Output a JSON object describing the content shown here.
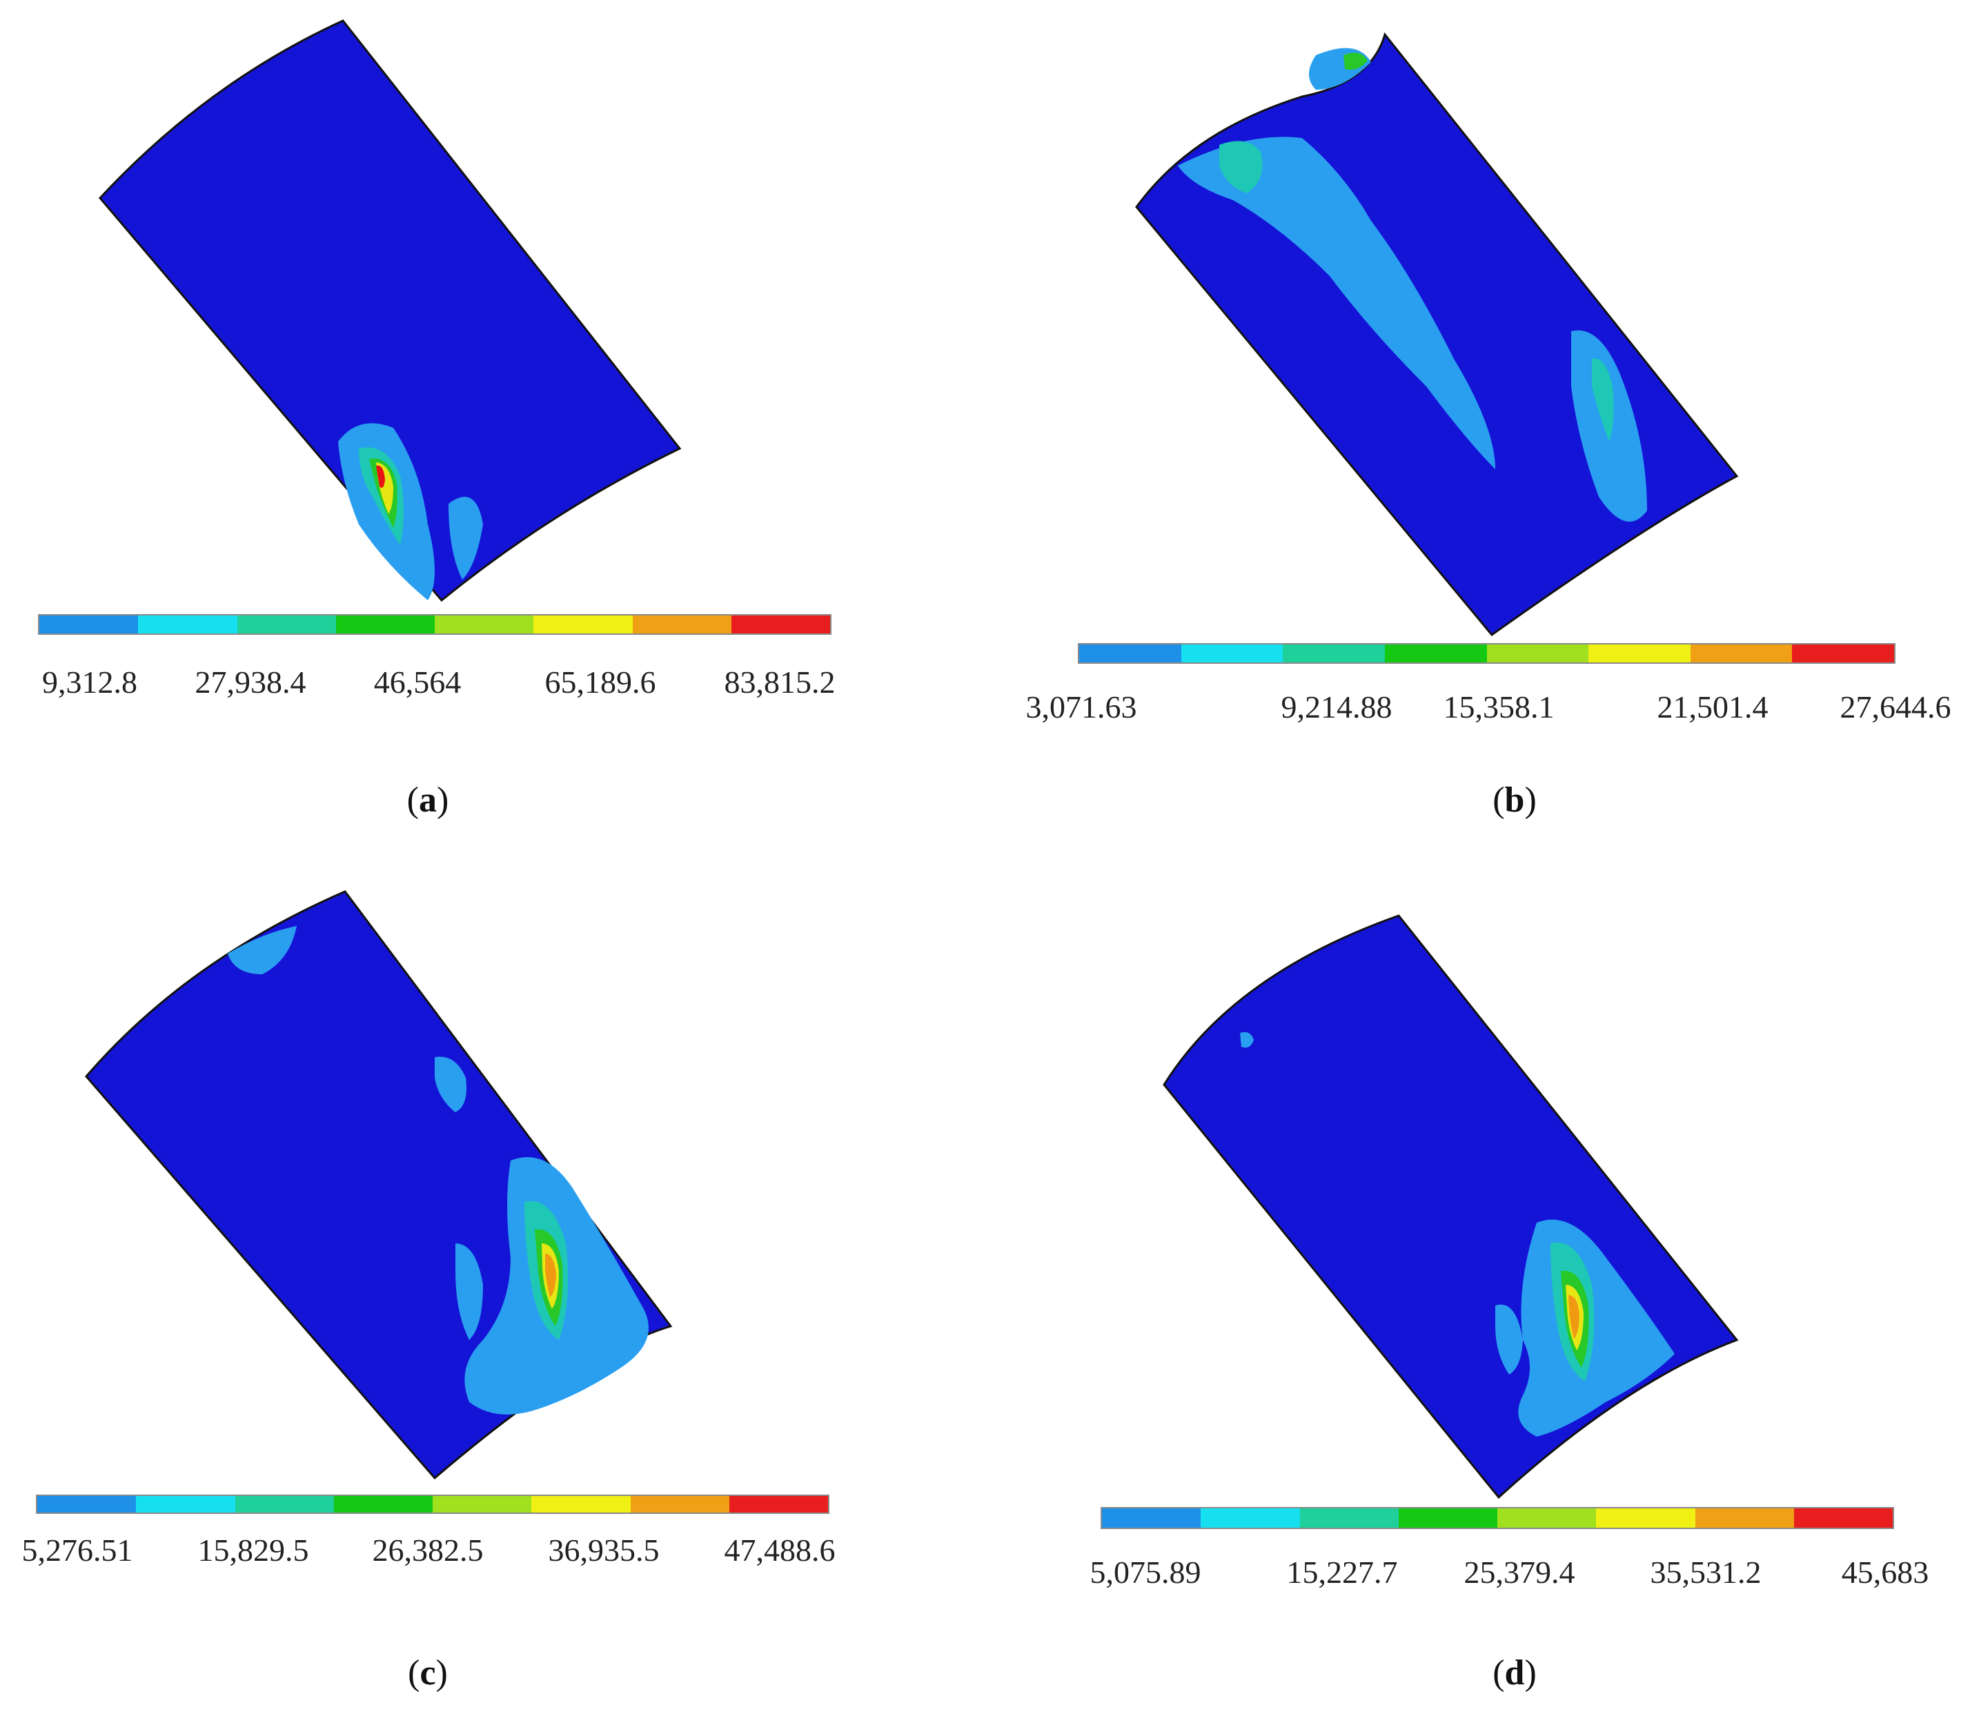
{
  "colors": {
    "background": "#1414d6",
    "outline": "#111111",
    "legend": [
      "#1e90e8",
      "#16e0f0",
      "#1fd09a",
      "#14c814",
      "#a0e01e",
      "#f0f014",
      "#f0a014",
      "#e81e1e"
    ],
    "contour_low": "#2a9ff0",
    "contour_mid": "#1ec8b4",
    "contour_green": "#28c828",
    "contour_yellow": "#e6e614",
    "contour_orange": "#f09a14",
    "contour_red": "#e81414"
  },
  "panels": [
    {
      "id": "a",
      "caption_letter": "a",
      "legend_values": [
        "9,312.8",
        "27,938.4",
        "46,564",
        "65,189.6",
        "83,815.2"
      ]
    },
    {
      "id": "b",
      "caption_letter": "b",
      "legend_values": [
        "3,071.63",
        "9,214.88",
        "15,358.1",
        "21,501.4",
        "27,644.6"
      ]
    },
    {
      "id": "c",
      "caption_letter": "c",
      "legend_values": [
        "5,276.51",
        "15,829.5",
        "26,382.5",
        "36,935.5",
        "47,488.6"
      ]
    },
    {
      "id": "d",
      "caption_letter": "d",
      "legend_values": [
        "5,075.89",
        "15,227.7",
        "25,379.4",
        "35,531.2",
        "45,683"
      ]
    }
  ]
}
